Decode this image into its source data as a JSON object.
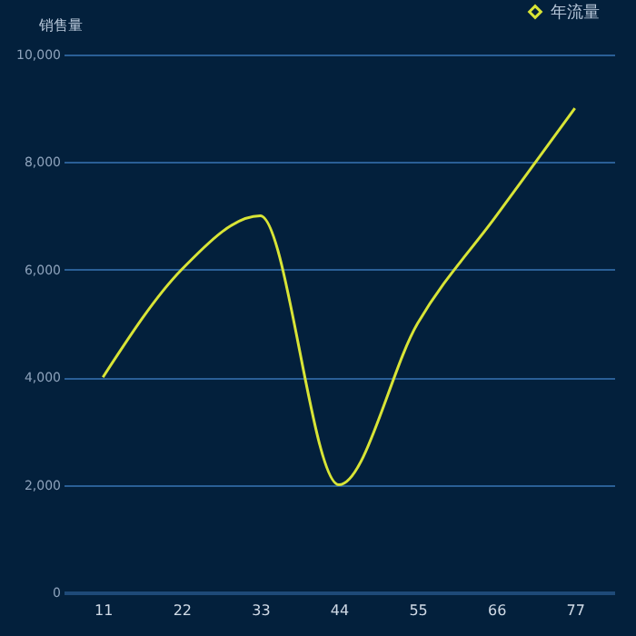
{
  "chart_data": {
    "type": "line",
    "ylabel": "销售量",
    "categories": [
      "11",
      "22",
      "33",
      "44",
      "55",
      "66",
      "77"
    ],
    "series": [
      {
        "name": "年流量",
        "color": "#d8e436",
        "values": [
          4000,
          6000,
          7000,
          2000,
          5000,
          7000,
          9000
        ]
      }
    ],
    "ylim": [
      0,
      10000
    ],
    "yticks": [
      {
        "value": 0,
        "label": "0"
      },
      {
        "value": 2000,
        "label": "2,000"
      },
      {
        "value": 4000,
        "label": "4,000"
      },
      {
        "value": 6000,
        "label": "6,000"
      },
      {
        "value": 8000,
        "label": "8,000"
      },
      {
        "value": 10000,
        "label": "10,000"
      }
    ],
    "grid": "y",
    "legend": "top right",
    "marker": "none",
    "line_style": "solid"
  }
}
